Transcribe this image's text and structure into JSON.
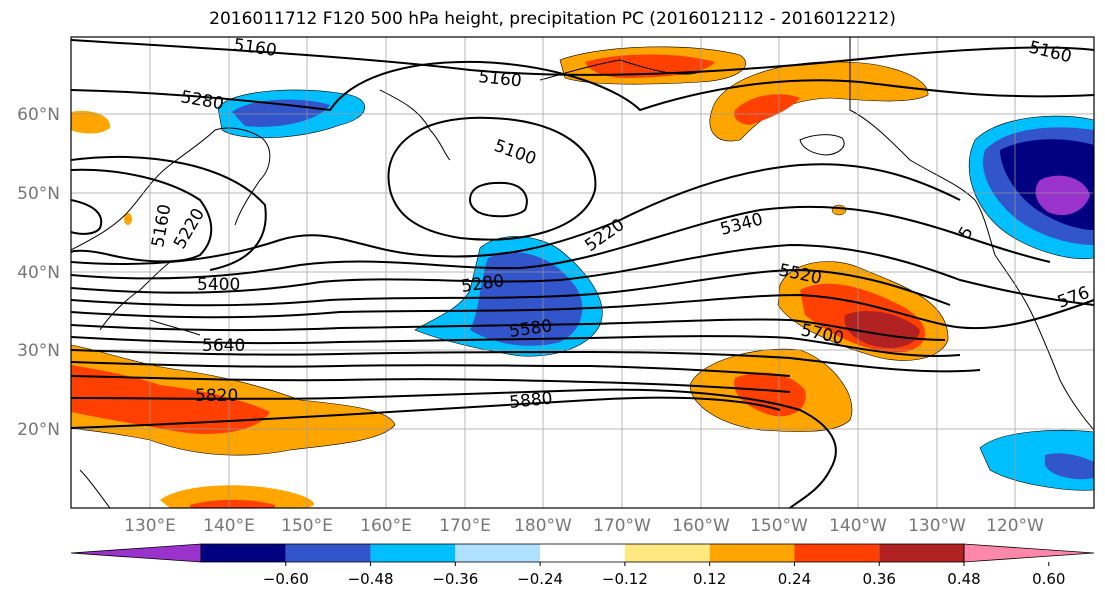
{
  "title": "2016011712 F120 500 hPa height, precipitation PC (2016012112 - 2016012212)",
  "map": {
    "lat_labels": [
      "60°N",
      "50°N",
      "40°N",
      "30°N",
      "20°N"
    ],
    "lon_labels": [
      "130°E",
      "140°E",
      "150°E",
      "160°E",
      "170°E",
      "180°W",
      "170°W",
      "160°W",
      "150°W",
      "140°W",
      "130°W",
      "120°W"
    ],
    "contour_labels": {
      "c5160_a": "5160",
      "c5160_b": "5160",
      "c5160_c": "5160",
      "c5160_d": "5160",
      "c5280_a": "5280",
      "c5280_b": "5280",
      "c5100": "5100",
      "c5220_a": "5220",
      "c5220_b": "5220",
      "c5340": "5340",
      "c5400": "5400",
      "c5520": "5520",
      "c5580": "5580",
      "c5640": "5640",
      "c5700": "5700",
      "c5820": "5820",
      "c5880": "5880",
      "c5760": "576",
      "c5_right": "5"
    }
  },
  "colorbar": {
    "tick_labels": [
      "−0.60",
      "−0.48",
      "−0.36",
      "−0.24",
      "−0.12",
      "0.12",
      "0.24",
      "0.36",
      "0.48",
      "0.60"
    ],
    "colors": [
      "#9933cc",
      "#000080",
      "#3355cc",
      "#00bfff",
      "#b0e0ff",
      "#ffffff",
      "#ffe880",
      "#ffa500",
      "#ff4000",
      "#b22222",
      "#ff88aa"
    ]
  }
}
